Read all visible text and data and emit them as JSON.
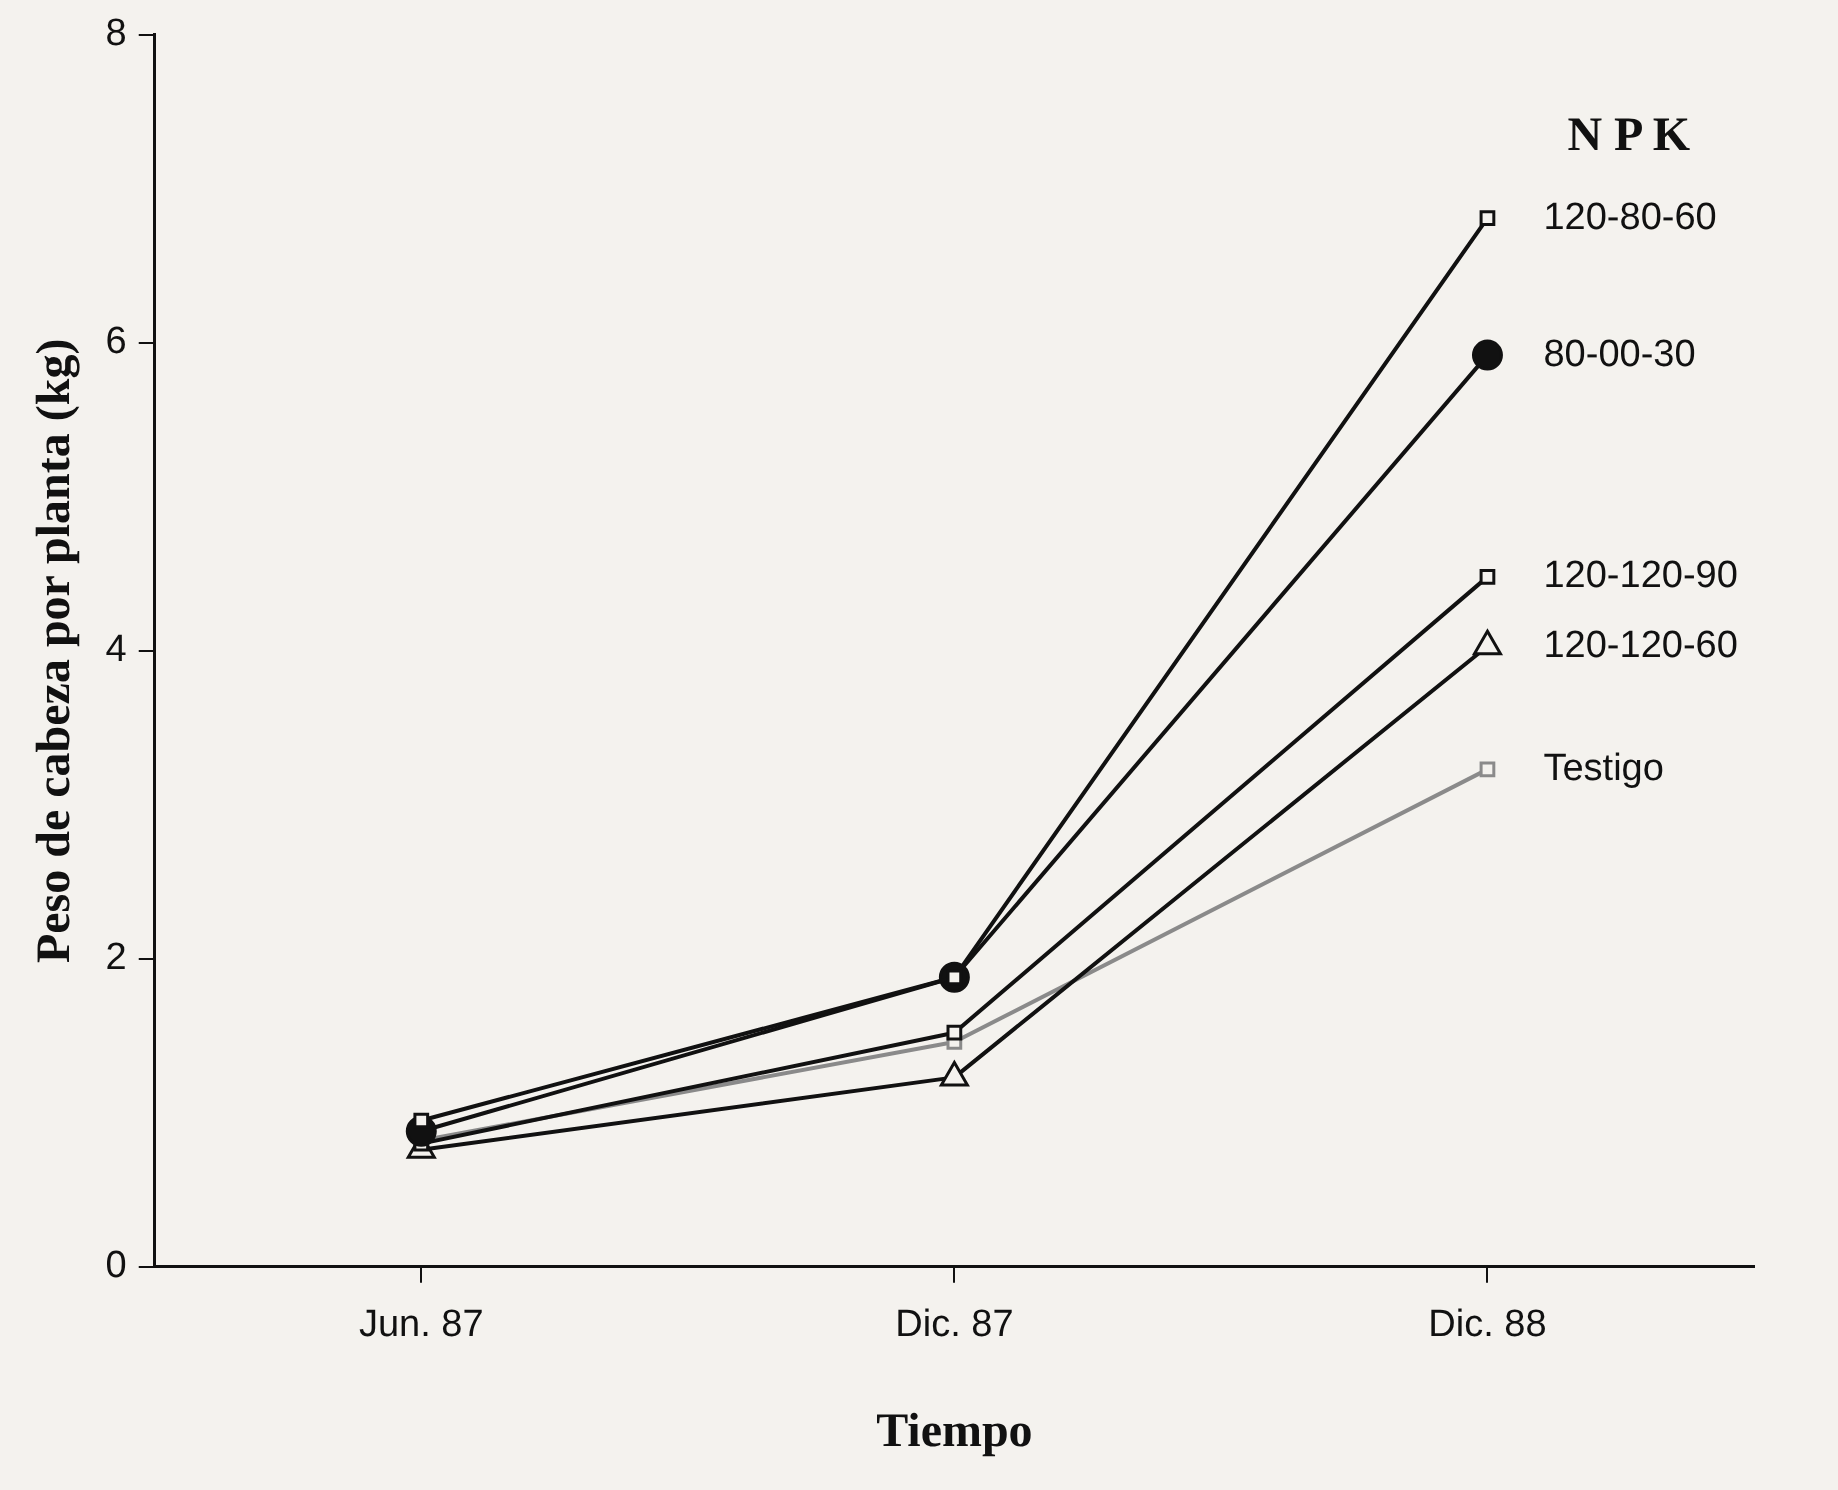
{
  "chart_data": {
    "type": "line",
    "xlabel": "Tiempo",
    "ylabel": "Peso de cabeza por planta (kg)",
    "legend_title": "N P K",
    "categories": [
      "Jun. 87",
      "Dic. 87",
      "Dic. 88"
    ],
    "ylim": [
      0,
      8
    ],
    "yticks": [
      0,
      2,
      4,
      6,
      8
    ],
    "grid": false,
    "legend": false,
    "series": [
      {
        "name": "120-80-60",
        "color": "#111111",
        "marker": "square",
        "values": [
          0.95,
          1.88,
          6.81
        ]
      },
      {
        "name": "80-00-30",
        "color": "#111111",
        "marker": "circle",
        "values": [
          0.88,
          1.88,
          5.92
        ]
      },
      {
        "name": "120-120-90",
        "color": "#111111",
        "marker": "square",
        "values": [
          0.8,
          1.52,
          4.48
        ]
      },
      {
        "name": "120-120-60",
        "color": "#111111",
        "marker": "triangle",
        "values": [
          0.76,
          1.23,
          4.03
        ]
      },
      {
        "name": "Testigo",
        "color": "#8a8a8a",
        "marker": "square",
        "values": [
          0.82,
          1.46,
          3.23
        ]
      }
    ]
  }
}
